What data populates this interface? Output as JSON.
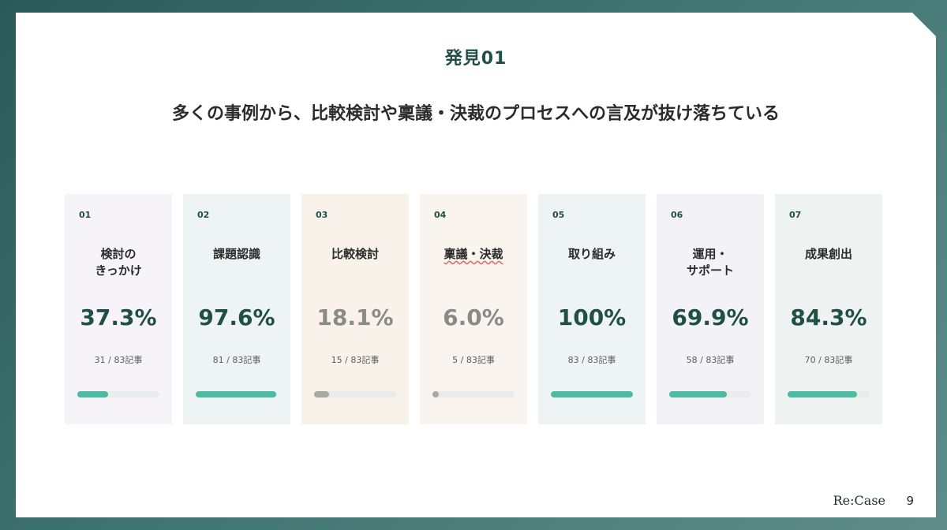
{
  "slide": {
    "section_title": "発見01",
    "headline": "多くの事例から、比較検討や稟議・決裁のプロセスへの言及が抜け落ちている",
    "brand": "Re:Case",
    "page_number": "9"
  },
  "cards": [
    {
      "num": "01",
      "title_lines": [
        "検討の",
        "きっかけ"
      ],
      "percent": "37.3%",
      "count": "31 / 83記事",
      "fraction": 0.373,
      "bg": "#f6f4f8",
      "muted": false
    },
    {
      "num": "02",
      "title_lines": [
        "課題認識"
      ],
      "percent": "97.6%",
      "count": "81 / 83記事",
      "fraction": 0.976,
      "bg": "#eef3f4",
      "muted": false
    },
    {
      "num": "03",
      "title_lines": [
        "比較検討"
      ],
      "percent": "18.1%",
      "count": "15 / 83記事",
      "fraction": 0.181,
      "bg": "#f8f2ea",
      "muted": true
    },
    {
      "num": "04",
      "title_lines": [
        "稟議・決裁"
      ],
      "percent": "6.0%",
      "count": "5 / 83記事",
      "fraction": 0.06,
      "bg": "#faf4ee",
      "muted": true
    },
    {
      "num": "05",
      "title_lines": [
        "取り組み"
      ],
      "percent": "100%",
      "count": "83 / 83記事",
      "fraction": 1.0,
      "bg": "#eef3f3",
      "muted": false
    },
    {
      "num": "06",
      "title_lines": [
        "運用・",
        "サポート"
      ],
      "percent": "69.9%",
      "count": "58 / 83記事",
      "fraction": 0.699,
      "bg": "#f3f3f7",
      "muted": false
    },
    {
      "num": "07",
      "title_lines": [
        "成果創出"
      ],
      "percent": "84.3%",
      "count": "70 / 83記事",
      "fraction": 0.843,
      "bg": "#eef3f1",
      "muted": false
    }
  ]
}
